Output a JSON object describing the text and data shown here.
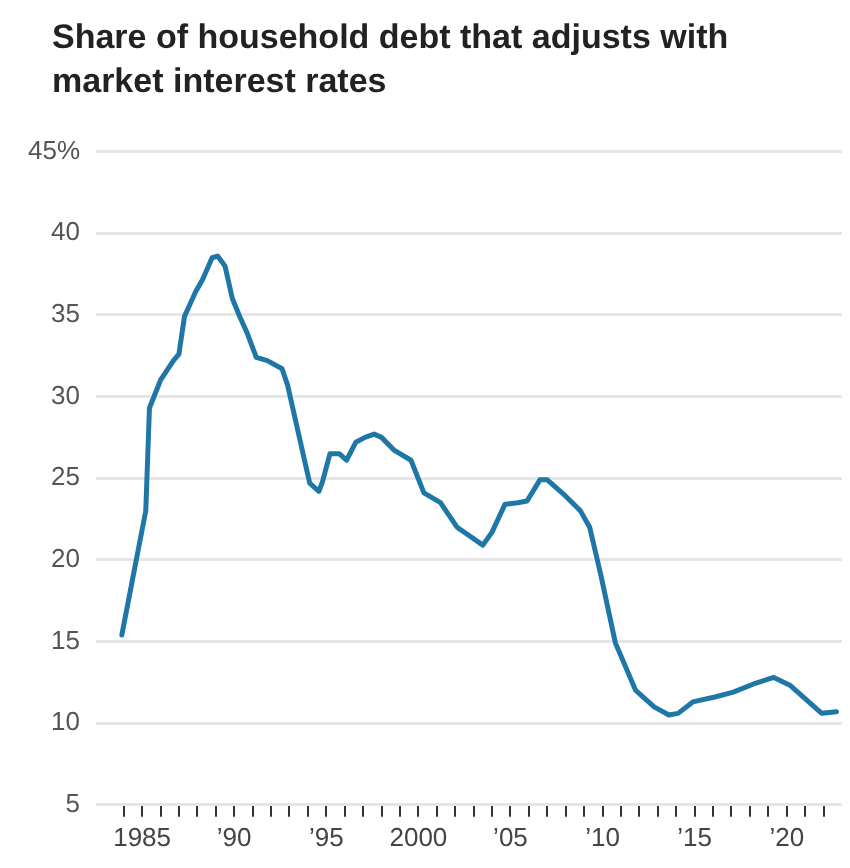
{
  "chart_data": {
    "type": "line",
    "title": "Share of household debt that adjusts with market interest rates",
    "x": [
      1983.9,
      1984.6,
      1985.2,
      1985.4,
      1986.0,
      1986.7,
      1987.0,
      1987.3,
      1987.9,
      1988.3,
      1988.8,
      1989.1,
      1989.5,
      1989.9,
      1990.3,
      1990.7,
      1991.2,
      1991.8,
      1992.6,
      1992.9,
      1993.4,
      1994.1,
      1994.6,
      1994.8,
      1995.2,
      1995.7,
      1996.1,
      1996.6,
      1997.1,
      1997.6,
      1998.0,
      1998.7,
      1999.6,
      2000.3,
      2001.2,
      2002.1,
      2003.5,
      2004.0,
      2004.7,
      2005.4,
      2005.9,
      2006.6,
      2007.0,
      2008.0,
      2008.8,
      2009.3,
      2009.9,
      2010.7,
      2011.8,
      2012.8,
      2013.6,
      2014.1,
      2014.9,
      2016.1,
      2017.1,
      2018.2,
      2019.3,
      2020.2,
      2021.1,
      2021.9,
      2022.7
    ],
    "series": [
      {
        "color": "#1f77a8",
        "values": [
          15.4,
          19.5,
          23,
          29.3,
          31,
          32.2,
          32.6,
          34.9,
          36.4,
          37.2,
          38.5,
          38.6,
          38,
          36,
          34.9,
          33.9,
          32.4,
          32.2,
          31.7,
          30.7,
          28.2,
          24.7,
          24.2,
          24.8,
          26.5,
          26.5,
          26.1,
          27.2,
          27.5,
          27.7,
          27.5,
          26.7,
          26.1,
          24.1,
          23.5,
          22,
          20.9,
          21.7,
          23.4,
          23.5,
          23.6,
          24.9,
          24.9,
          23.9,
          23,
          22,
          19.1,
          14.9,
          12,
          11,
          10.5,
          10.6,
          11.3,
          11.6,
          11.9,
          12.4,
          12.8,
          12.3,
          11.4,
          10.6,
          10.7
        ]
      }
    ],
    "xlim": [
      1982.5,
      2023
    ],
    "xticks": [
      {
        "value": 1984,
        "label": null
      },
      {
        "value": 1985,
        "label": "1985"
      },
      {
        "value": 1986,
        "label": null
      },
      {
        "value": 1987,
        "label": null
      },
      {
        "value": 1988,
        "label": null
      },
      {
        "value": 1989,
        "label": null
      },
      {
        "value": 1990,
        "label": "’90"
      },
      {
        "value": 1991,
        "label": null
      },
      {
        "value": 1992,
        "label": null
      },
      {
        "value": 1993,
        "label": null
      },
      {
        "value": 1994,
        "label": null
      },
      {
        "value": 1995,
        "label": "’95"
      },
      {
        "value": 1996,
        "label": null
      },
      {
        "value": 1997,
        "label": null
      },
      {
        "value": 1998,
        "label": null
      },
      {
        "value": 1999,
        "label": null
      },
      {
        "value": 2000,
        "label": "2000"
      },
      {
        "value": 2001,
        "label": null
      },
      {
        "value": 2002,
        "label": null
      },
      {
        "value": 2003,
        "label": null
      },
      {
        "value": 2004,
        "label": null
      },
      {
        "value": 2005,
        "label": "’05"
      },
      {
        "value": 2006,
        "label": null
      },
      {
        "value": 2007,
        "label": null
      },
      {
        "value": 2008,
        "label": null
      },
      {
        "value": 2009,
        "label": null
      },
      {
        "value": 2010,
        "label": "’10"
      },
      {
        "value": 2011,
        "label": null
      },
      {
        "value": 2012,
        "label": null
      },
      {
        "value": 2013,
        "label": null
      },
      {
        "value": 2014,
        "label": null
      },
      {
        "value": 2015,
        "label": "’15"
      },
      {
        "value": 2016,
        "label": null
      },
      {
        "value": 2017,
        "label": null
      },
      {
        "value": 2018,
        "label": null
      },
      {
        "value": 2019,
        "label": null
      },
      {
        "value": 2020,
        "label": "’20"
      },
      {
        "value": 2021,
        "label": null
      },
      {
        "value": 2022,
        "label": null
      }
    ],
    "ylim": [
      5,
      45
    ],
    "yticks": [
      5,
      10,
      15,
      20,
      25,
      30,
      35,
      40,
      {
        "value": 45,
        "label": "45%"
      }
    ],
    "grid": "y",
    "legend": false,
    "marker": "none",
    "line_style": "solid"
  }
}
